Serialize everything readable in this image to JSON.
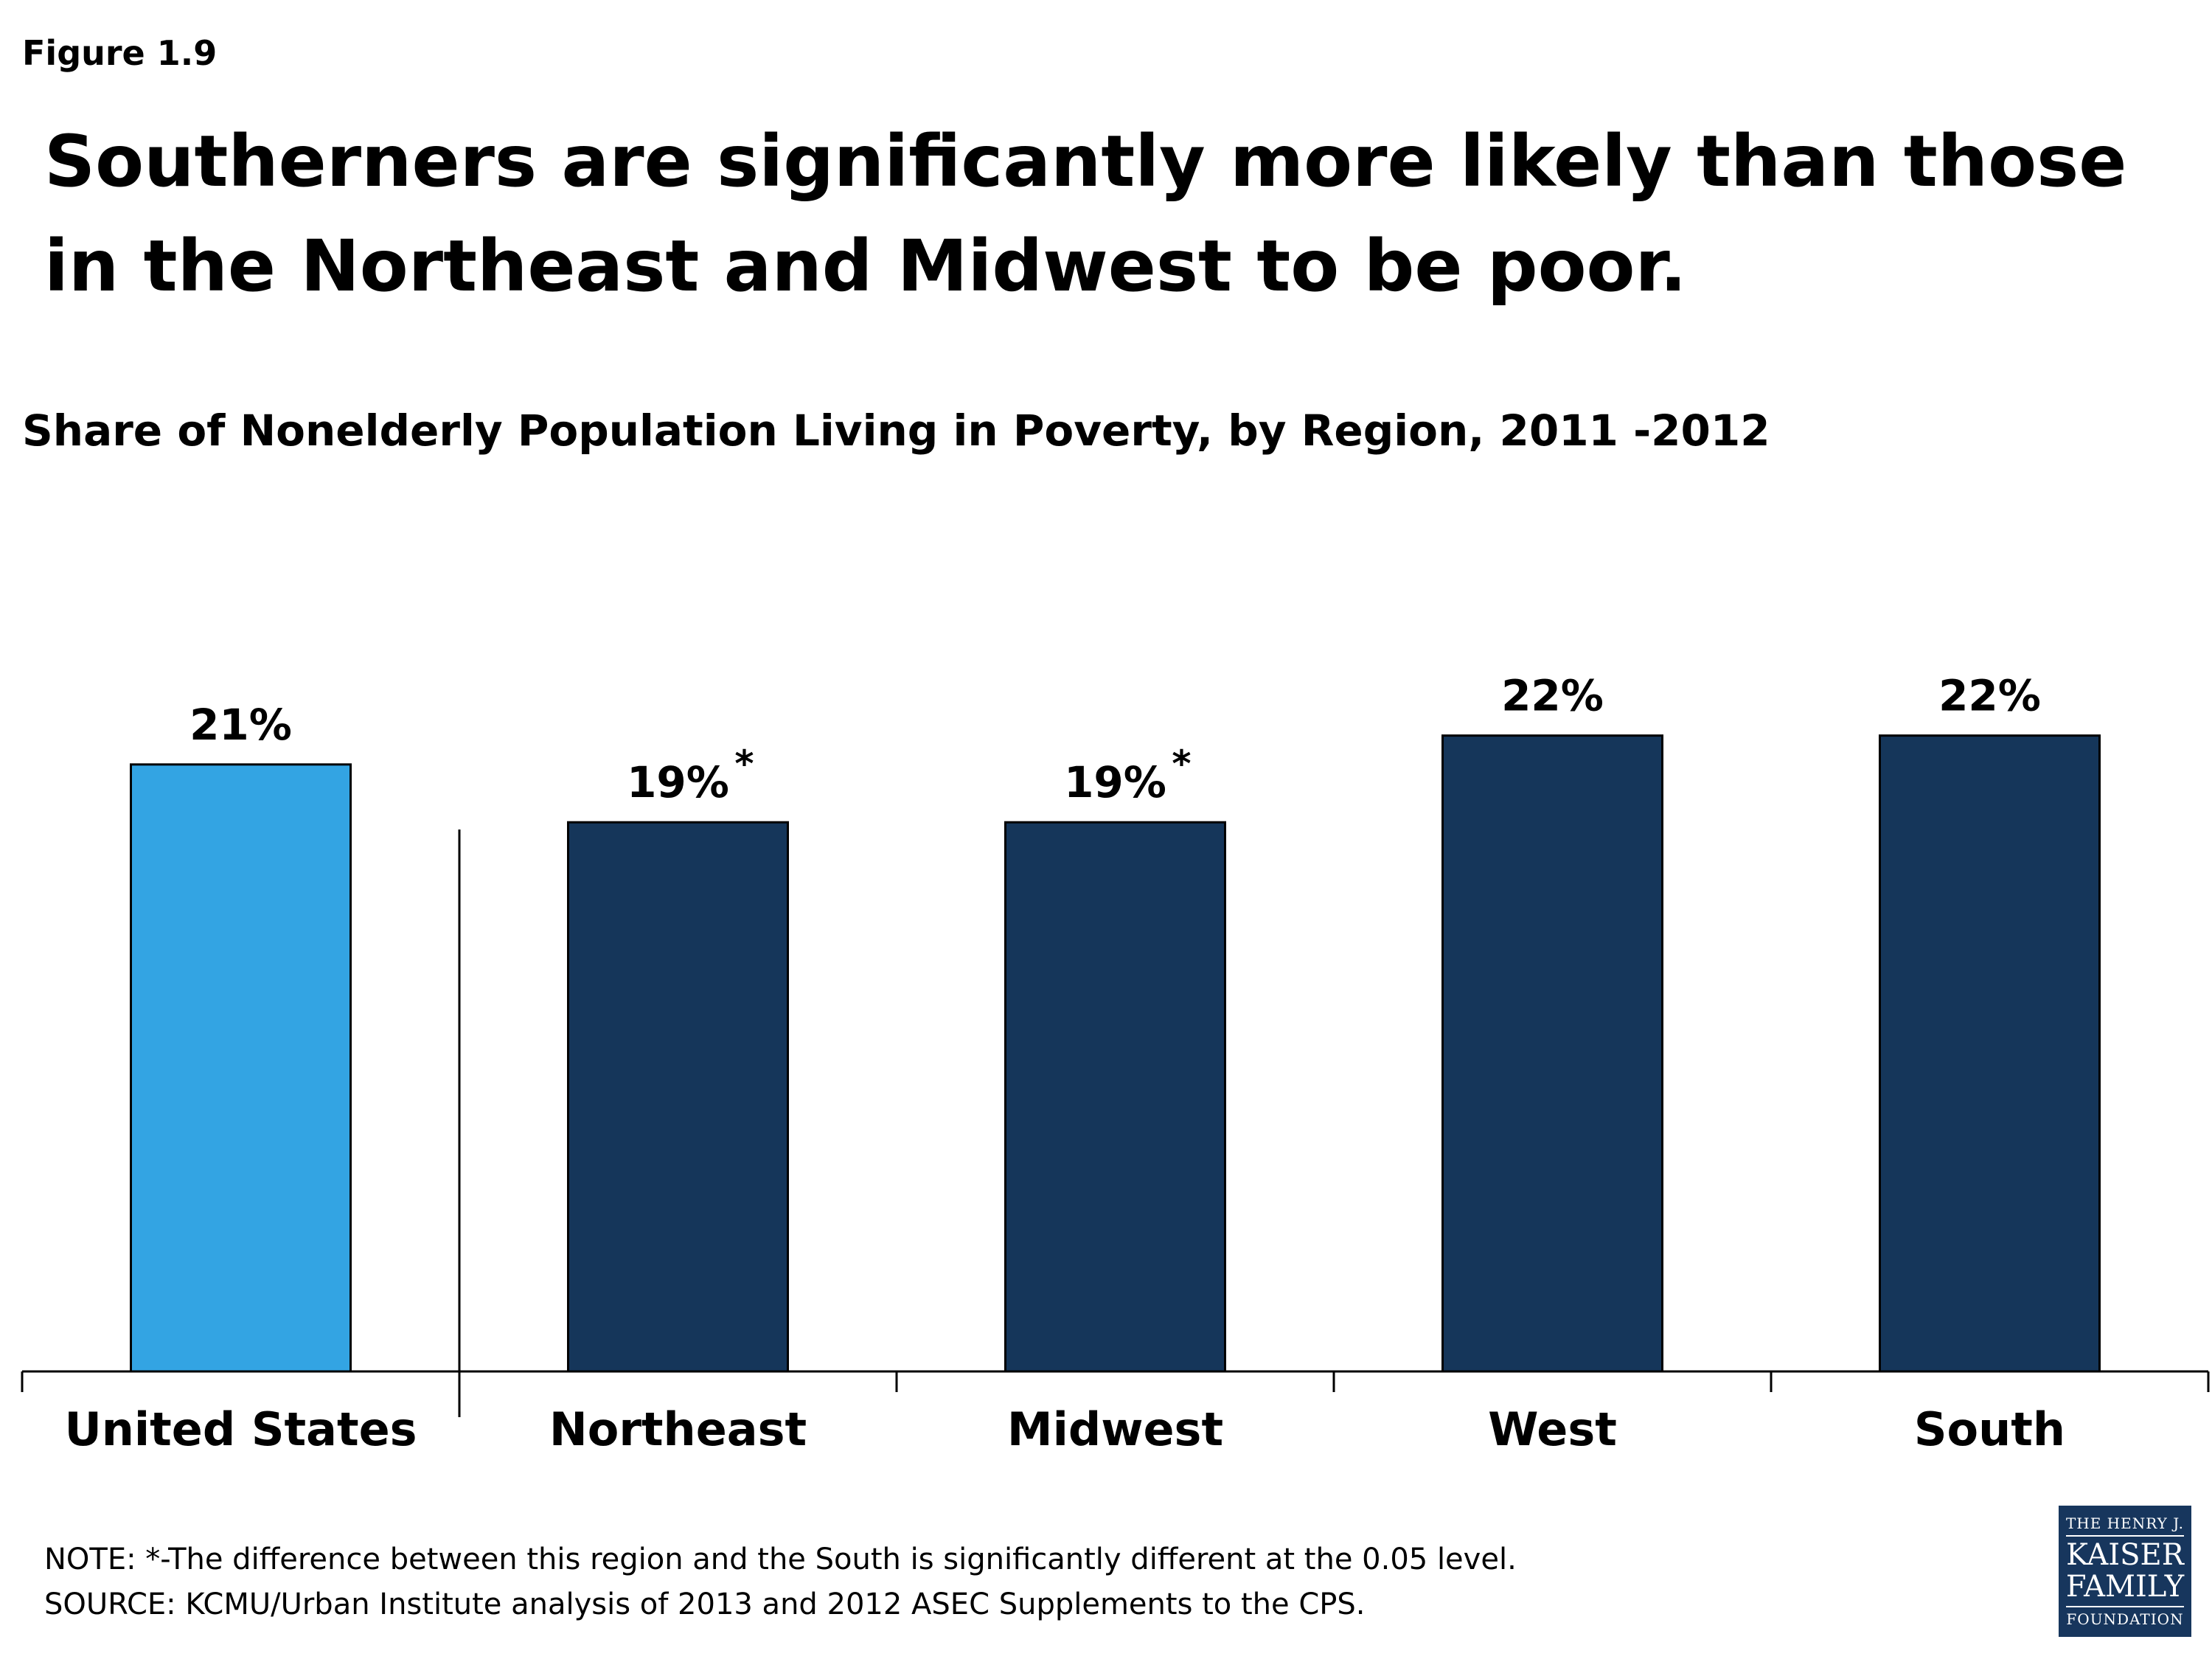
{
  "figure_label": "Figure 1.9",
  "headline": "Southerners are significantly more likely than those in the Northeast and Midwest to be poor.",
  "chart_data": {
    "type": "bar",
    "title": "Share of Nonelderly Population Living in Poverty, by Region, 2011 -2012",
    "xlabel": "",
    "ylabel": "",
    "categories": [
      "United States",
      "Northeast",
      "Midwest",
      "West",
      "South"
    ],
    "values": [
      21,
      19,
      19,
      22,
      22
    ],
    "labels": [
      "21%",
      "19%",
      "19%",
      "22%",
      "22%"
    ],
    "significance_markers": [
      "",
      "*",
      "*",
      "",
      ""
    ],
    "ylim": [
      0,
      25
    ],
    "grid": false,
    "legend": "none",
    "colors": {
      "united_states": "#33a4e3",
      "regions": "#15365a",
      "outline": "#000000"
    }
  },
  "notes": {
    "note": "NOTE: *-The difference between this region and the South is significantly different at the 0.05 level.",
    "source": "SOURCE: KCMU/Urban Institute analysis of 2013 and 2012 ASEC Supplements to the CPS."
  },
  "logo": {
    "line1": "THE HENRY J.",
    "line2": "KAISER",
    "line3": "FAMILY",
    "line4": "FOUNDATION"
  }
}
